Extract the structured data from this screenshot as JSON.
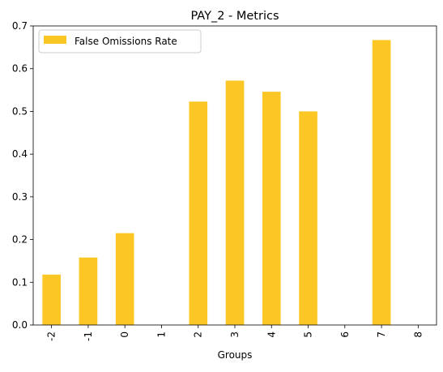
{
  "chart_data": {
    "type": "bar",
    "title": "PAY_2 - Metrics",
    "xlabel": "Groups",
    "ylabel": "",
    "categories": [
      "-2",
      "-1",
      "0",
      "1",
      "2",
      "3",
      "4",
      "5",
      "6",
      "7",
      "8"
    ],
    "series": [
      {
        "name": "False Omissions Rate",
        "color": "#fcc624",
        "values": [
          0.118,
          0.158,
          0.215,
          0.0,
          0.523,
          0.572,
          0.546,
          0.5,
          0.0,
          0.667,
          0.0
        ]
      }
    ],
    "ylim": [
      0,
      0.7
    ],
    "yticks": [
      "0.0",
      "0.1",
      "0.2",
      "0.3",
      "0.4",
      "0.5",
      "0.6",
      "0.7"
    ],
    "legend_position": "top-left",
    "grid": false
  }
}
